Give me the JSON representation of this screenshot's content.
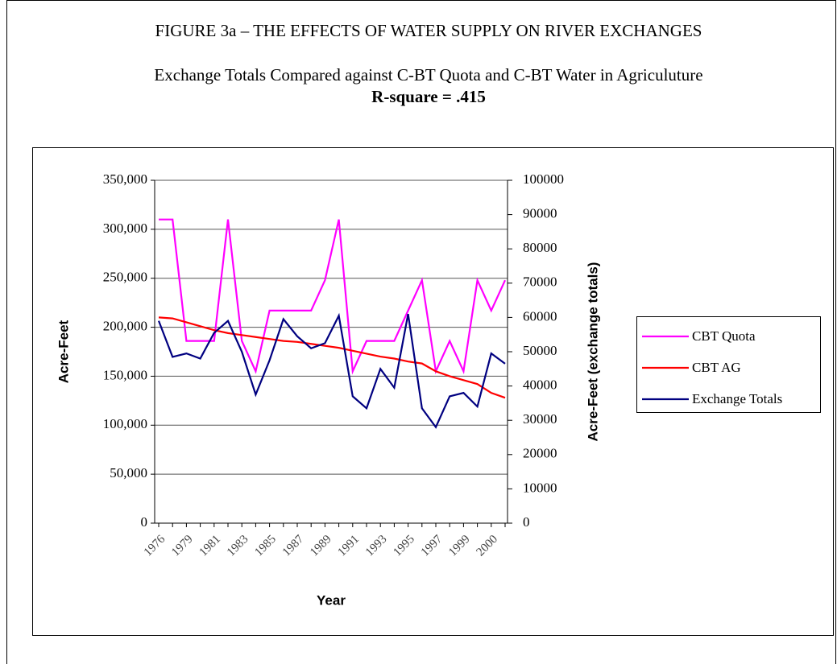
{
  "chart_data": {
    "type": "line",
    "figure_title": "FIGURE 3a – THE EFFECTS OF WATER SUPPLY ON RIVER EXCHANGES",
    "title": "Exchange Totals Compared against C-BT Quota and C-BT Water in Agriculuture",
    "subtitle": "R-square = .415",
    "x_label": "Year",
    "y_label": "Acre-Feet",
    "y2_label": "Acre-Feet (exchange totals)",
    "categories": [
      "1976",
      null,
      "1979",
      null,
      "1981",
      null,
      "1983",
      null,
      "1985",
      null,
      "1987",
      null,
      "1989",
      null,
      "1991",
      null,
      "1993",
      null,
      "1995",
      null,
      "1997",
      null,
      "1999",
      null,
      "2000",
      null
    ],
    "ylim": [
      0,
      350000
    ],
    "yticks": [
      {
        "value": 0,
        "label": "0"
      },
      {
        "value": 50000,
        "label": "50,000"
      },
      {
        "value": 100000,
        "label": "100,000"
      },
      {
        "value": 150000,
        "label": "150,000"
      },
      {
        "value": 200000,
        "label": "200,000"
      },
      {
        "value": 250000,
        "label": "250,000"
      },
      {
        "value": 300000,
        "label": "300,000"
      },
      {
        "value": 350000,
        "label": "350,000"
      }
    ],
    "y2lim": [
      0,
      100000
    ],
    "y2ticks": [
      0,
      10000,
      20000,
      30000,
      40000,
      50000,
      60000,
      70000,
      80000,
      90000,
      100000
    ],
    "grid": true,
    "legend": "right",
    "series": [
      {
        "name": "CBT Quota",
        "color": "#ff00ff",
        "values": [
          310000,
          310000,
          186000,
          186000,
          186000,
          310000,
          186000,
          155000,
          217000,
          217000,
          217000,
          217000,
          248000,
          310000,
          155000,
          186000,
          186000,
          186000,
          217000,
          248000,
          155000,
          186000,
          155000,
          248000,
          217000,
          248000
        ]
      },
      {
        "name": "CBT AG",
        "color": "#ff0000",
        "values": [
          210000,
          209000,
          205000,
          201000,
          197000,
          194000,
          192000,
          190000,
          188000,
          186000,
          185000,
          183000,
          181000,
          179000,
          176000,
          173000,
          170000,
          168000,
          165000,
          163000,
          155000,
          150000,
          146000,
          142000,
          133000,
          128000
        ]
      },
      {
        "name": "Exchange Totals",
        "color": "#000080",
        "axis": "y2",
        "values": [
          59000,
          48500,
          49500,
          48000,
          55500,
          59000,
          50000,
          37500,
          47500,
          59500,
          54500,
          51000,
          52500,
          60500,
          37000,
          33500,
          45000,
          39500,
          61000,
          33500,
          28000,
          37000,
          38000,
          34000,
          49500,
          46500
        ]
      }
    ]
  }
}
